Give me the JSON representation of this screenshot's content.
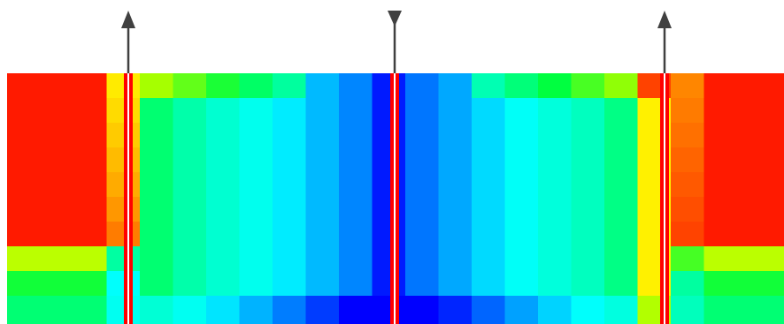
{
  "diagram": {
    "description_type": "heatmap-field-with-wells",
    "colormap": [
      "#ff0000",
      "#ffa000",
      "#ffff00",
      "#a0ff00",
      "#00ff40",
      "#00ffc0",
      "#00ffff",
      "#0090ff",
      "#0000ff"
    ],
    "wells": [
      {
        "name": "left-well",
        "type": "injector",
        "arrow": "up"
      },
      {
        "name": "center-well",
        "type": "producer",
        "arrow": "down"
      },
      {
        "name": "right-well",
        "type": "injector",
        "arrow": "up"
      }
    ],
    "well_colors": {
      "line": "#ff0000",
      "highlight": "#ffffff",
      "arrow": "#404040"
    }
  }
}
